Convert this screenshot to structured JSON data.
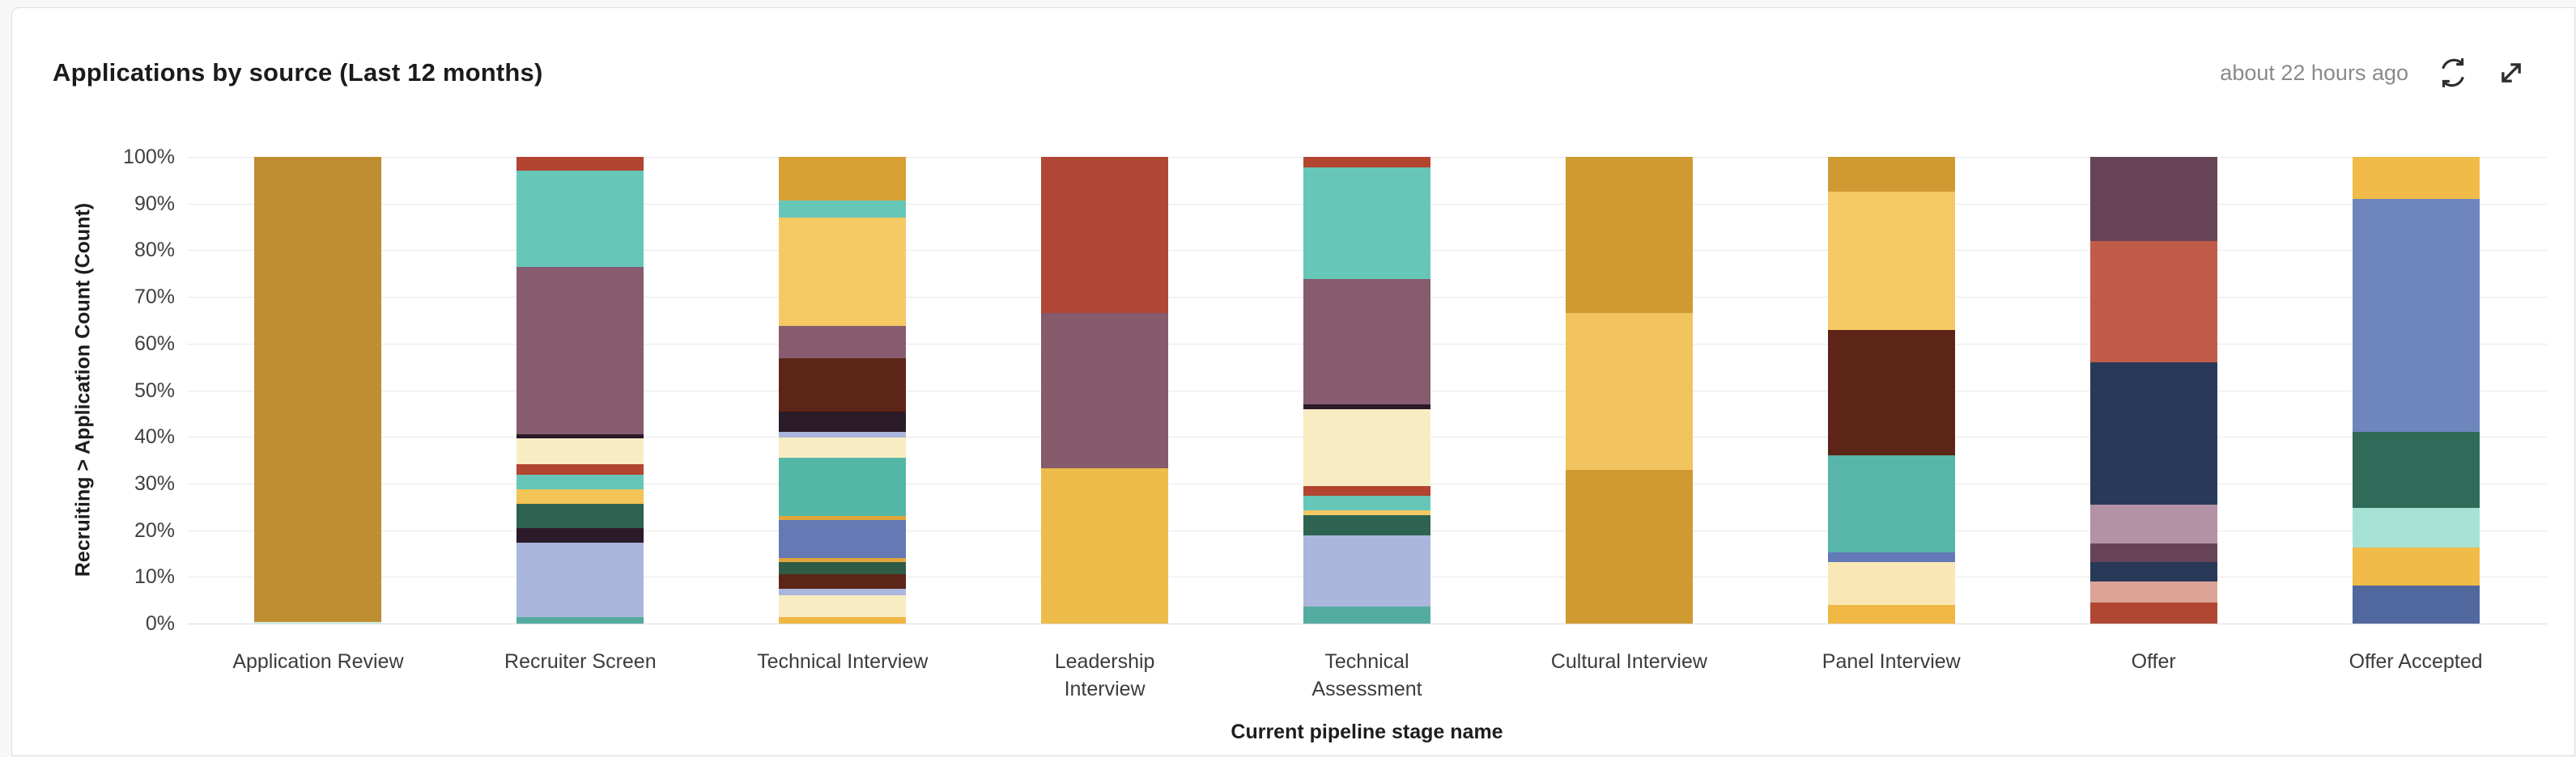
{
  "card": {
    "title": "Applications by source (Last 12 months)",
    "updated": "about 22 hours ago"
  },
  "icons": {
    "refresh": "refresh-icon",
    "expand": "expand-icon"
  },
  "chart_data": {
    "type": "bar",
    "stacked": true,
    "units": "percent_of_total",
    "title": "Applications by source (Last 12 months)",
    "xlabel": "Current pipeline stage name",
    "ylabel": "Recruiting > Application Count (Count)",
    "ylim": [
      0,
      100
    ],
    "y_ticks": [
      "100%",
      "90%",
      "80%",
      "70%",
      "60%",
      "50%",
      "40%",
      "30%",
      "20%",
      "10%",
      "0%"
    ],
    "grid": "horizontal",
    "legend": "none",
    "categories": [
      "Application Review",
      "Recruiter Screen",
      "Technical Interview",
      "Leadership Interview",
      "Technical Assessment",
      "Cultural Interview",
      "Panel Interview",
      "Offer",
      "Offer Accepted"
    ],
    "category_label_lines": [
      [
        "Application Review"
      ],
      [
        "Recruiter Screen"
      ],
      [
        "Technical Interview"
      ],
      [
        "Leadership",
        "Interview"
      ],
      [
        "Technical",
        "Assessment"
      ],
      [
        "Cultural Interview"
      ],
      [
        "Panel Interview"
      ],
      [
        "Offer"
      ],
      [
        "Offer Accepted"
      ]
    ],
    "bars": [
      {
        "category": "Application Review",
        "segments": [
          {
            "color": "#bf8e30",
            "value": 99.6
          },
          {
            "color": "#cdeee3",
            "value": 0.4
          }
        ]
      },
      {
        "category": "Recruiter Screen",
        "segments": [
          {
            "color": "#b2452f",
            "value": 3.0
          },
          {
            "color": "#66c7b9",
            "value": 20.5
          },
          {
            "color": "#875c6e",
            "value": 36.0
          },
          {
            "color": "#2b1a28",
            "value": 0.8
          },
          {
            "color": "#f8ecc2",
            "value": 5.5
          },
          {
            "color": "#b2452f",
            "value": 2.3
          },
          {
            "color": "#66c7b9",
            "value": 3.2
          },
          {
            "color": "#f2c455",
            "value": 3.0
          },
          {
            "color": "#2e6352",
            "value": 5.3
          },
          {
            "color": "#2b1a28",
            "value": 3.0
          },
          {
            "color": "#aab6dc",
            "value": 16.0
          },
          {
            "color": "#54aca0",
            "value": 1.4
          }
        ]
      },
      {
        "category": "Technical Interview",
        "segments": [
          {
            "color": "#d6a032",
            "value": 9.4
          },
          {
            "color": "#66c7b9",
            "value": 3.6
          },
          {
            "color": "#f5c963",
            "value": 23.3
          },
          {
            "color": "#875c6e",
            "value": 6.9
          },
          {
            "color": "#5c2517",
            "value": 11.4
          },
          {
            "color": "#2b1a28",
            "value": 4.3
          },
          {
            "color": "#aab6dc",
            "value": 1.2
          },
          {
            "color": "#f8ecc2",
            "value": 4.3
          },
          {
            "color": "#54b7a6",
            "value": 12.6
          },
          {
            "color": "#e0a63c",
            "value": 0.9
          },
          {
            "color": "#6579b5",
            "value": 8.1
          },
          {
            "color": "#e0a63c",
            "value": 0.9
          },
          {
            "color": "#2e5c44",
            "value": 2.6
          },
          {
            "color": "#5c2517",
            "value": 3.1
          },
          {
            "color": "#aab6dc",
            "value": 1.4
          },
          {
            "color": "#f8ecc2",
            "value": 4.6
          },
          {
            "color": "#f0b843",
            "value": 1.4
          }
        ]
      },
      {
        "category": "Leadership Interview",
        "segments": [
          {
            "color": "#b04734",
            "value": 33.4
          },
          {
            "color": "#865b6c",
            "value": 33.3
          },
          {
            "color": "#eebc4a",
            "value": 33.3
          }
        ]
      },
      {
        "category": "Technical Assessment",
        "segments": [
          {
            "color": "#b2452f",
            "value": 2.2
          },
          {
            "color": "#66c7b9",
            "value": 24.0
          },
          {
            "color": "#875c6e",
            "value": 26.8
          },
          {
            "color": "#2b1a28",
            "value": 1.0
          },
          {
            "color": "#f8ecc2",
            "value": 16.5
          },
          {
            "color": "#b2452f",
            "value": 2.2
          },
          {
            "color": "#66c7b9",
            "value": 3.1
          },
          {
            "color": "#f5c963",
            "value": 0.9
          },
          {
            "color": "#2e6352",
            "value": 4.4
          },
          {
            "color": "#aab6dc",
            "value": 15.3
          },
          {
            "color": "#54aca0",
            "value": 3.6
          }
        ]
      },
      {
        "category": "Cultural Interview",
        "segments": [
          {
            "color": "#d09a33",
            "value": 33.5
          },
          {
            "color": "#f2c45f",
            "value": 33.5
          },
          {
            "color": "#d09a33",
            "value": 33.0
          }
        ]
      },
      {
        "category": "Panel Interview",
        "segments": [
          {
            "color": "#d09a33",
            "value": 7.5
          },
          {
            "color": "#f5c963",
            "value": 29.5
          },
          {
            "color": "#5c2517",
            "value": 27.0
          },
          {
            "color": "#57b5a9",
            "value": 20.7
          },
          {
            "color": "#6379b8",
            "value": 2.2
          },
          {
            "color": "#f9e8b5",
            "value": 9.1
          },
          {
            "color": "#f0b843",
            "value": 4.0
          }
        ]
      },
      {
        "category": "Offer",
        "segments": [
          {
            "color": "#664456",
            "value": 18.0
          },
          {
            "color": "#c05c49",
            "value": 26.0
          },
          {
            "color": "#293a58",
            "value": 30.5
          },
          {
            "color": "#b292a4",
            "value": 8.4
          },
          {
            "color": "#664456",
            "value": 4.0
          },
          {
            "color": "#293a58",
            "value": 4.1
          },
          {
            "color": "#dda396",
            "value": 4.5
          },
          {
            "color": "#b04733",
            "value": 4.5
          }
        ]
      },
      {
        "category": "Offer Accepted",
        "segments": [
          {
            "color": "#f0bb48",
            "value": 9.0
          },
          {
            "color": "#6e86bd",
            "value": 50.0
          },
          {
            "color": "#306a58",
            "value": 16.3
          },
          {
            "color": "#a5e2d4",
            "value": 8.4
          },
          {
            "color": "#f0bb48",
            "value": 8.2
          },
          {
            "color": "#51689f",
            "value": 8.1
          }
        ]
      }
    ]
  }
}
